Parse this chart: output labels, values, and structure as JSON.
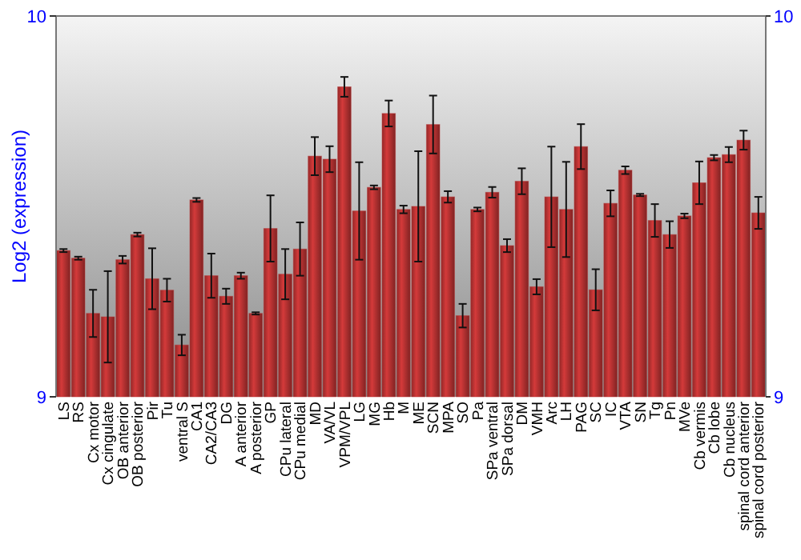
{
  "chart_data": {
    "type": "bar",
    "ylabel": "Log2 (expression)",
    "categories": [
      "LS",
      "RS",
      "Cx motor",
      "Cx cingulate",
      "OB anterior",
      "OB posterior",
      "Pir",
      "Tu",
      "ventral S",
      "CA1",
      "CA2/CA3",
      "DG",
      "A anterior",
      "A posterior",
      "GP",
      "CPu lateral",
      "CPu medial",
      "MD",
      "VA/VL",
      "VPM/VPL",
      "LG",
      "MG",
      "Hb",
      "M",
      "ME",
      "SCN",
      "MPA",
      "SO",
      "Pa",
      "SPa ventral",
      "SPa dorsal",
      "DM",
      "VMH",
      "Arc",
      "LH",
      "PAG",
      "SC",
      "IC",
      "VTA",
      "SN",
      "Tg",
      "Pn",
      "MVe",
      "Cb vermis",
      "Cb lobe",
      "Cb nucleus",
      "spinal cord anterior",
      "spinal cord posterior"
    ],
    "values": [
      9.384,
      9.364,
      9.219,
      9.21,
      9.36,
      9.426,
      9.31,
      9.28,
      9.136,
      9.517,
      9.318,
      9.264,
      9.318,
      9.219,
      9.442,
      9.322,
      9.388,
      9.632,
      9.624,
      9.814,
      9.488,
      9.55,
      9.744,
      9.492,
      9.5,
      9.715,
      9.525,
      9.213,
      9.492,
      9.537,
      9.397,
      9.566,
      9.289,
      9.525,
      9.492,
      9.657,
      9.281,
      9.508,
      9.595,
      9.53,
      9.463,
      9.426,
      9.475,
      9.562,
      9.628,
      9.636,
      9.674,
      9.483
    ],
    "errors": [
      0.004,
      0.004,
      0.062,
      0.12,
      0.01,
      0.005,
      0.08,
      0.03,
      0.027,
      0.005,
      0.058,
      0.02,
      0.008,
      0.003,
      0.087,
      0.066,
      0.07,
      0.05,
      0.034,
      0.026,
      0.128,
      0.005,
      0.034,
      0.01,
      0.145,
      0.076,
      0.015,
      0.031,
      0.005,
      0.014,
      0.017,
      0.034,
      0.02,
      0.132,
      0.125,
      0.059,
      0.054,
      0.034,
      0.01,
      0.003,
      0.043,
      0.035,
      0.006,
      0.056,
      0.007,
      0.02,
      0.025,
      0.042
    ],
    "color": "#b83232",
    "ylim": [
      9,
      10
    ],
    "yticks": [
      9,
      10
    ],
    "y2lim": [
      9,
      10
    ],
    "y2ticks": [
      9,
      10
    ],
    "grid": false
  }
}
